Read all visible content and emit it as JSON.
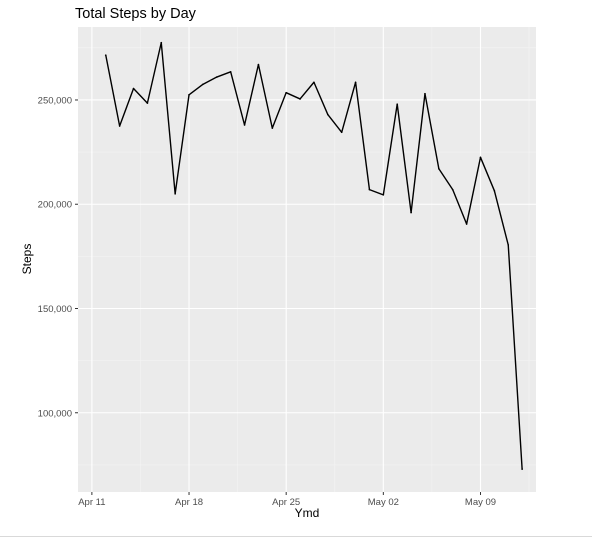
{
  "chart_data": {
    "type": "line",
    "title": "Total Steps by Day",
    "xlabel": "Ymd",
    "ylabel": "Steps",
    "x_ticks": [
      {
        "date": "2016-04-11",
        "label": "Apr 11"
      },
      {
        "date": "2016-04-18",
        "label": "Apr 18"
      },
      {
        "date": "2016-04-25",
        "label": "Apr 25"
      },
      {
        "date": "2016-05-02",
        "label": "May 02"
      },
      {
        "date": "2016-05-09",
        "label": "May 09"
      }
    ],
    "y_ticks": [
      {
        "value": 100000,
        "label": "100,000"
      },
      {
        "value": 150000,
        "label": "150,000"
      },
      {
        "value": 200000,
        "label": "200,000"
      },
      {
        "value": 250000,
        "label": "250,000"
      }
    ],
    "xlim": [
      "2016-04-10",
      "2016-05-13"
    ],
    "ylim": [
      62000,
      285000
    ],
    "grid": true,
    "background": "#ebebeb",
    "line_color": "#000000",
    "series": [
      {
        "points": [
          {
            "x": "2016-04-12",
            "y": 271500
          },
          {
            "x": "2016-04-13",
            "y": 237500
          },
          {
            "x": "2016-04-14",
            "y": 255500
          },
          {
            "x": "2016-04-15",
            "y": 248500
          },
          {
            "x": "2016-04-16",
            "y": 277500
          },
          {
            "x": "2016-04-17",
            "y": 205000
          },
          {
            "x": "2016-04-18",
            "y": 252500
          },
          {
            "x": "2016-04-19",
            "y": 257500
          },
          {
            "x": "2016-04-20",
            "y": 261000
          },
          {
            "x": "2016-04-21",
            "y": 263500
          },
          {
            "x": "2016-04-22",
            "y": 238000
          },
          {
            "x": "2016-04-23",
            "y": 267000
          },
          {
            "x": "2016-04-24",
            "y": 236500
          },
          {
            "x": "2016-04-25",
            "y": 253500
          },
          {
            "x": "2016-04-26",
            "y": 250500
          },
          {
            "x": "2016-04-27",
            "y": 258500
          },
          {
            "x": "2016-04-28",
            "y": 243000
          },
          {
            "x": "2016-04-29",
            "y": 234500
          },
          {
            "x": "2016-04-30",
            "y": 258500
          },
          {
            "x": "2016-05-01",
            "y": 207000
          },
          {
            "x": "2016-05-02",
            "y": 204500
          },
          {
            "x": "2016-05-03",
            "y": 248000
          },
          {
            "x": "2016-05-04",
            "y": 196000
          },
          {
            "x": "2016-05-05",
            "y": 253000
          },
          {
            "x": "2016-05-06",
            "y": 217000
          },
          {
            "x": "2016-05-07",
            "y": 207000
          },
          {
            "x": "2016-05-08",
            "y": 190500
          },
          {
            "x": "2016-05-09",
            "y": 222500
          },
          {
            "x": "2016-05-10",
            "y": 206500
          },
          {
            "x": "2016-05-11",
            "y": 180500
          },
          {
            "x": "2016-05-12",
            "y": 73000
          }
        ]
      }
    ]
  }
}
